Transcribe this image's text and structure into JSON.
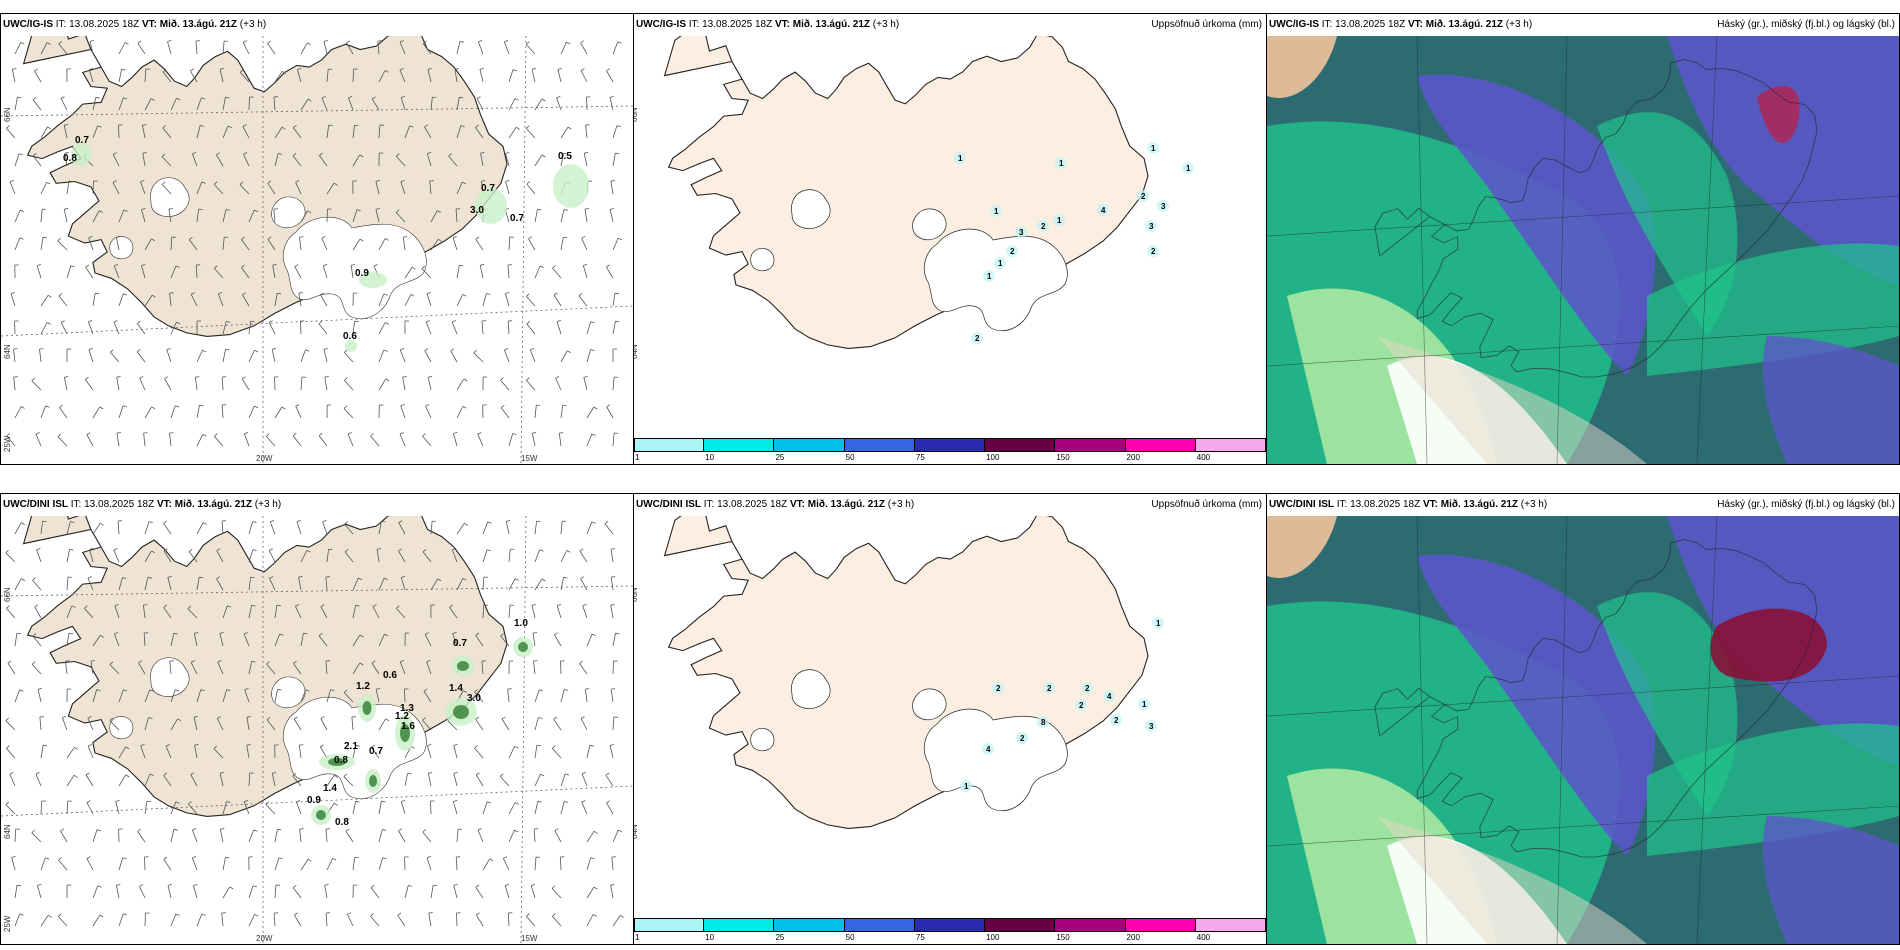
{
  "colors": {
    "land_tan": "#efe3d3",
    "land_cream": "#fcefe2",
    "glacier": "#ffffff",
    "green_light": "#c8f0c8",
    "green_dark": "#2e7d32"
  },
  "rows": [
    {
      "model": "UWC/IG-IS",
      "it_label": "IT:",
      "it_value": "13.08.2025 18Z",
      "vt_label": "VT:",
      "vt_value": "Mið. 13.ágú. 21Z",
      "lead": "(+3 h)",
      "wind_labels": [
        "0.7",
        "0.8",
        "0.5",
        "0.7",
        "3.0",
        "0.7",
        "0.9",
        "0.6"
      ],
      "precip_labels": [
        "1",
        "1",
        "1",
        "1",
        "1",
        "3",
        "2",
        "1",
        "2",
        "1",
        "4",
        "2",
        "3",
        "3",
        "1",
        "2",
        "2"
      ]
    },
    {
      "model": "UWC/DINI ISL",
      "it_label": "IT:",
      "it_value": "13.08.2025 18Z",
      "vt_label": "VT:",
      "vt_value": "Mið. 13.ágú. 21Z",
      "lead": "(+3 h)",
      "wind_labels": [
        "1.0",
        "0.7",
        "1.2",
        "0.6",
        "1.4",
        "3.0",
        "1.3",
        "1.2",
        "1.6",
        "2.1",
        "0.7",
        "0.8",
        "1.4",
        "0.9",
        "0.8"
      ],
      "precip_labels": [
        "1",
        "2",
        "2",
        "2",
        "4",
        "2",
        "2",
        "1",
        "8",
        "3",
        "4",
        "2",
        "1"
      ]
    }
  ],
  "precip_title": "Uppsöfnuð úrkoma (mm)",
  "cloud_title": "Háský (gr.), miðský (fj.bl.) og lágský (bl.)",
  "axis": {
    "lat_66": "66N",
    "lat_64": "64N",
    "lon_25": "25W",
    "lon_20": "20W",
    "lon_15": "15W"
  },
  "colorbar": {
    "ticks": [
      "1",
      "10",
      "25",
      "50",
      "75",
      "100",
      "150",
      "200",
      "400"
    ],
    "colors": [
      "#aaf5f5",
      "#00eaea",
      "#00bfe8",
      "#3366e0",
      "#2a2ab0",
      "#660044",
      "#a8007a",
      "#ff00b0",
      "#f5aaf0"
    ]
  }
}
